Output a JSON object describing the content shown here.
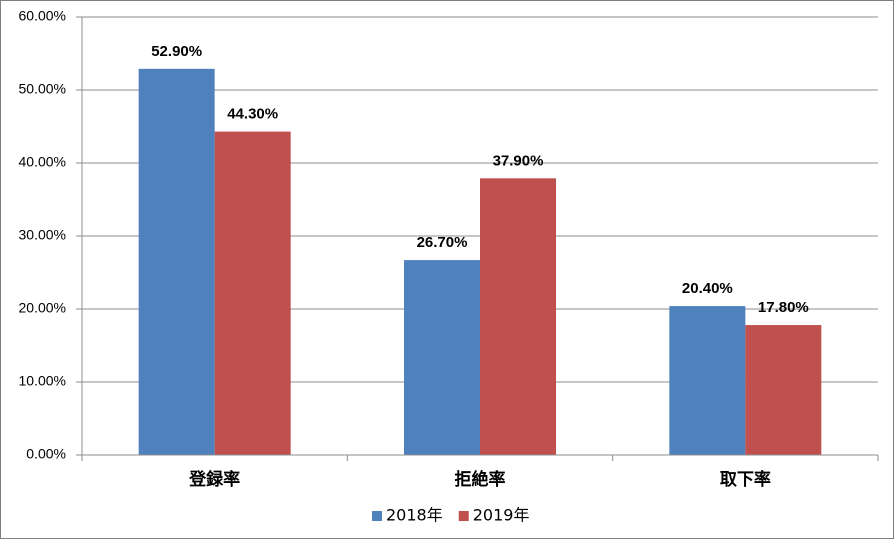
{
  "chart_data": {
    "type": "bar",
    "categories": [
      "登録率",
      "拒絶率",
      "取下率"
    ],
    "series": [
      {
        "name": "2018年",
        "color": "#4f81bd",
        "values": [
          52.9,
          26.7,
          20.4
        ],
        "value_labels": [
          "52.90%",
          "26.70%",
          "20.40%"
        ]
      },
      {
        "name": "2019年",
        "color": "#c0504d",
        "values": [
          44.3,
          37.9,
          17.8
        ],
        "value_labels": [
          "44.30%",
          "37.90%",
          "17.80%"
        ]
      }
    ],
    "ylim": [
      0,
      60
    ],
    "yticks": [
      {
        "value": 0,
        "label": "0.00%"
      },
      {
        "value": 10,
        "label": "10.00%"
      },
      {
        "value": 20,
        "label": "20.00%"
      },
      {
        "value": 30,
        "label": "30.00%"
      },
      {
        "value": 40,
        "label": "40.00%"
      },
      {
        "value": 50,
        "label": "50.00%"
      },
      {
        "value": 60,
        "label": "60.00%"
      }
    ],
    "grid": true,
    "legend": "bottom"
  }
}
